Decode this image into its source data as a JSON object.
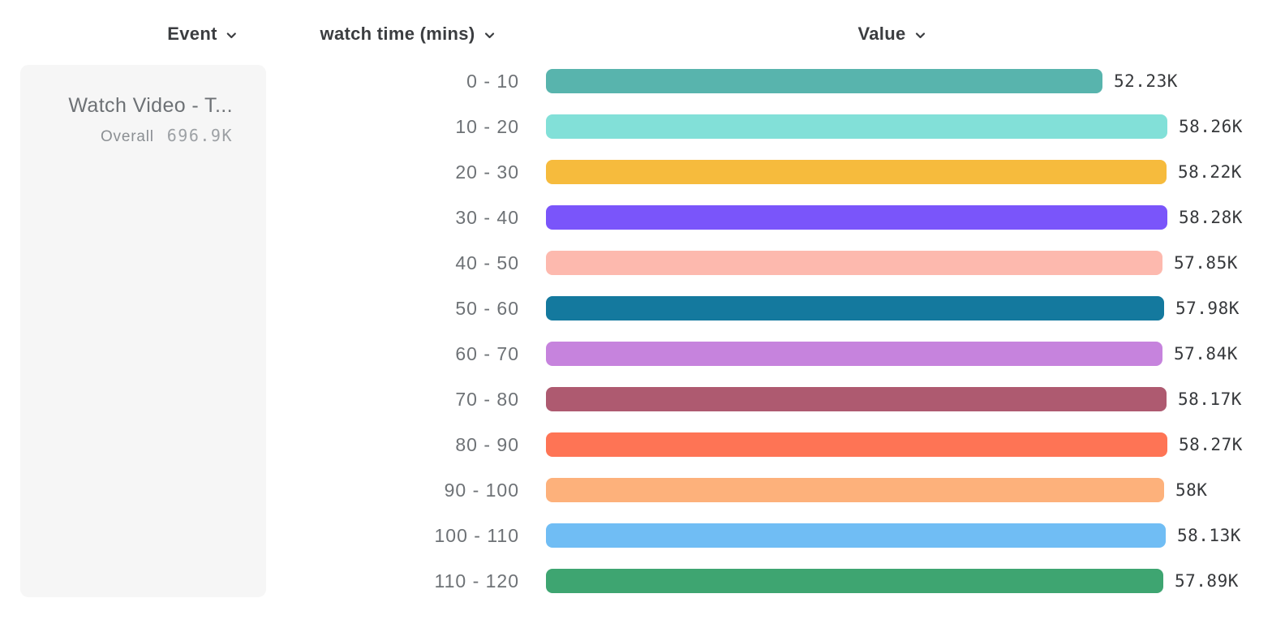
{
  "header": {
    "event": "Event",
    "breakdown": "watch time (mins)",
    "value": "Value"
  },
  "legend": {
    "event_name": "Watch Video - T...",
    "overall_label": "Overall",
    "overall_value": "696.9K"
  },
  "icons": {
    "chevron_color": "#3b3d40"
  },
  "chart_data": {
    "type": "bar",
    "orientation": "horizontal",
    "title": "",
    "xlabel": "Value",
    "ylabel": "watch time (mins)",
    "xlim": [
      0,
      58280
    ],
    "categories": [
      "0 - 10",
      "10 - 20",
      "20 - 30",
      "30 - 40",
      "40 - 50",
      "50 - 60",
      "60 - 70",
      "70 - 80",
      "80 - 90",
      "90 - 100",
      "100 - 110",
      "110 - 120"
    ],
    "values": [
      52230,
      58260,
      58220,
      58280,
      57850,
      57980,
      57840,
      58170,
      58270,
      58000,
      58130,
      57890
    ],
    "value_labels": [
      "52.23K",
      "58.26K",
      "58.22K",
      "58.28K",
      "57.85K",
      "57.98K",
      "57.84K",
      "58.17K",
      "58.27K",
      "58K",
      "58.13K",
      "57.89K"
    ],
    "bar_colors": [
      "#58b4ad",
      "#82e0d8",
      "#f6bb3d",
      "#7a55fa",
      "#fdb9ae",
      "#14799e",
      "#c683dd",
      "#ae5a70",
      "#fe7455",
      "#fdb17b",
      "#70bdf4",
      "#3ea571"
    ],
    "grid": false,
    "legend_position": "left"
  }
}
